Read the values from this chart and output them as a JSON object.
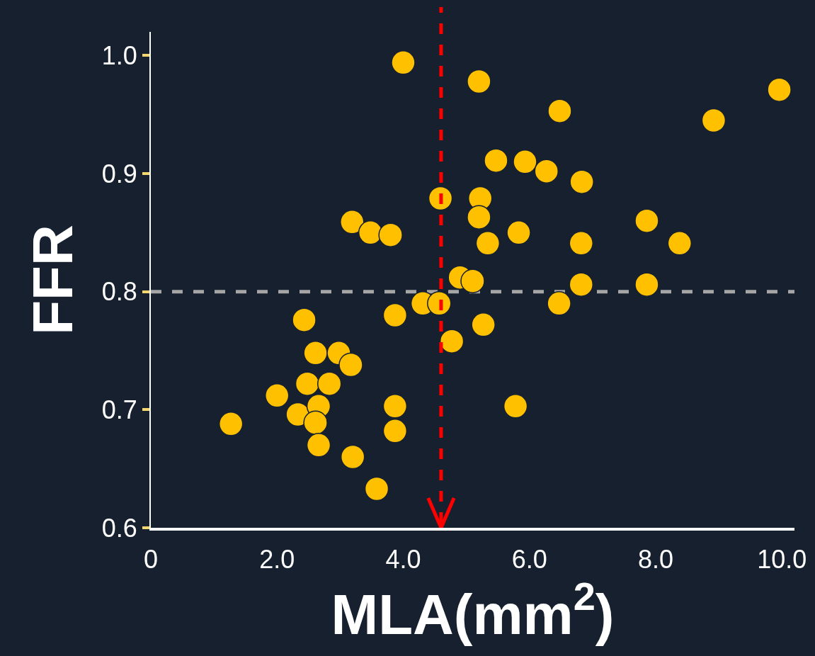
{
  "chart_data": {
    "type": "scatter",
    "xlabel": "MLA(mm$^{2}$)",
    "ylabel": "FFR",
    "xlim": [
      0,
      10.2
    ],
    "ylim": [
      0.6,
      1.02
    ],
    "xticks": [
      0,
      {
        "value": 2,
        "label": "2.0"
      },
      {
        "value": 4,
        "label": "4.0"
      },
      {
        "value": 6,
        "label": "6.0"
      },
      {
        "value": 8,
        "label": "8.0"
      },
      {
        "value": 10,
        "label": "10.0"
      }
    ],
    "yticks": [
      0.6,
      0.7,
      0.8,
      0.9,
      {
        "value": 1,
        "label": "1.0"
      }
    ],
    "marker": "circle",
    "series": [
      {
        "color": "#ffc000",
        "x": [
          4.0,
          5.2,
          6.48,
          9.96,
          8.92,
          5.47,
          5.93,
          6.27,
          6.83,
          4.59,
          5.22,
          5.2,
          3.19,
          3.48,
          3.8,
          5.83,
          5.34,
          6.82,
          7.86,
          8.38,
          4.9,
          5.1,
          6.82,
          7.86,
          4.31,
          4.57,
          6.47,
          3.87,
          2.43,
          5.27,
          4.77,
          2.61,
          2.98,
          3.17,
          2.48,
          2.83,
          2.0,
          2.33,
          2.66,
          2.61,
          1.27,
          3.87,
          5.78,
          3.87,
          2.66,
          3.2,
          3.58
        ],
        "values": [
          0.994,
          0.978,
          0.953,
          0.971,
          0.945,
          0.911,
          0.91,
          0.902,
          0.893,
          0.879,
          0.879,
          0.863,
          0.859,
          0.85,
          0.848,
          0.85,
          0.841,
          0.841,
          0.86,
          0.841,
          0.812,
          0.809,
          0.806,
          0.806,
          0.79,
          0.79,
          0.79,
          0.78,
          0.776,
          0.772,
          0.758,
          0.748,
          0.748,
          0.738,
          0.722,
          0.722,
          0.712,
          0.696,
          0.703,
          0.689,
          0.688,
          0.703,
          0.703,
          0.682,
          0.67,
          0.66,
          0.633
        ]
      }
    ],
    "ref_lines": [
      {
        "axis": "y",
        "value": 0.8,
        "color": "#a6a6a6",
        "line_style": "dashed"
      },
      {
        "axis": "x",
        "value": 4.6,
        "color": "#ff0000",
        "line_style": "dashed"
      }
    ]
  }
}
